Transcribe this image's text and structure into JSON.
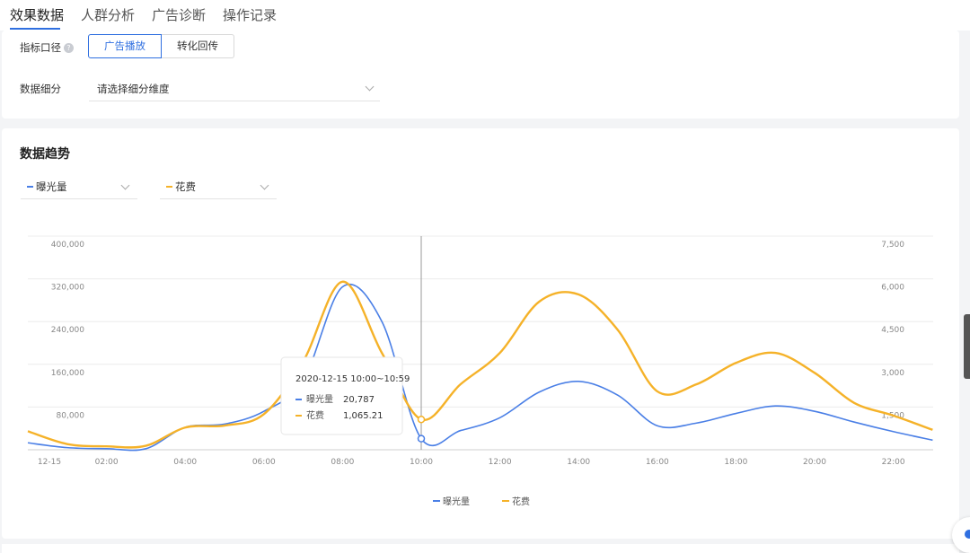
{
  "tabs": [
    "效果数据",
    "人群分析",
    "广告诊断",
    "操作记录"
  ],
  "filters": {
    "metric_label": "指标口径",
    "metric_options": [
      "广告播放",
      "转化回传"
    ],
    "breakdown_label": "数据细分",
    "breakdown_placeholder": "请选择细分维度"
  },
  "trend": {
    "title": "数据趋势",
    "metric_select_1": "曝光量",
    "metric_select_2": "花费"
  },
  "colors": {
    "accent": "#2f6fe0",
    "series_1": "#4a7fe6",
    "series_2": "#f5b229"
  },
  "chart_data": {
    "type": "line",
    "x_ticks": [
      "12-15",
      "02:00",
      "04:00",
      "06:00",
      "08:00",
      "10:00",
      "12:00",
      "14:00",
      "16:00",
      "18:00",
      "20:00",
      "22:00"
    ],
    "x": [
      0,
      1,
      2,
      3,
      4,
      5,
      6,
      7,
      8,
      9,
      10,
      11,
      12,
      13,
      14,
      15,
      16,
      17,
      18,
      19,
      20,
      21,
      22,
      23
    ],
    "series": [
      {
        "name": "曝光量",
        "axis": "left",
        "values": [
          13000,
          4000,
          2000,
          2000,
          42000,
          48000,
          72000,
          130000,
          305000,
          240000,
          20787,
          36000,
          60000,
          108000,
          128000,
          102000,
          45000,
          50000,
          68000,
          82000,
          72000,
          52000,
          34000,
          18000
        ]
      },
      {
        "name": "花费",
        "axis": "right",
        "values": [
          650,
          200,
          120,
          140,
          780,
          850,
          1250,
          3100,
          5900,
          3400,
          1065.21,
          2300,
          3400,
          5200,
          5450,
          4200,
          2050,
          2300,
          3050,
          3400,
          2700,
          1650,
          1200,
          700
        ]
      }
    ],
    "y_left": {
      "ylim": [
        0,
        400000
      ],
      "ticks": [
        "80,000",
        "160,000",
        "240,000",
        "320,000",
        "400,000"
      ]
    },
    "y_right": {
      "ylim": [
        0,
        7500
      ],
      "ticks": [
        "1,500",
        "3,000",
        "4,500",
        "6,000",
        "7,500"
      ]
    },
    "tooltip": {
      "title": "2020-12-15 10:00~10:59",
      "rows": [
        {
          "name": "曝光量",
          "value": "20,787"
        },
        {
          "name": "花费",
          "value": "1,065.21"
        }
      ]
    },
    "legend": [
      "曝光量",
      "花费"
    ],
    "legend_position": "bottom",
    "grid": true
  }
}
